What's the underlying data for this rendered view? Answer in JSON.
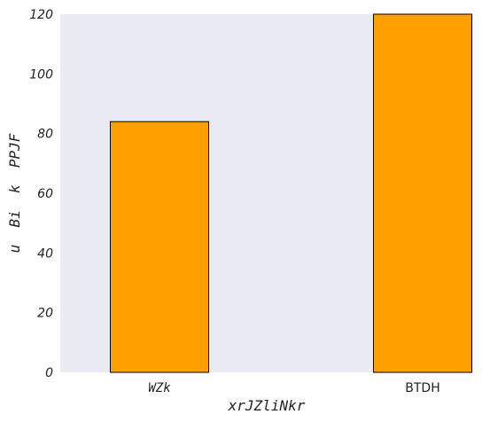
{
  "chart_data": {
    "type": "bar",
    "title": "",
    "xlabel": "xrJZliNkr",
    "ylabel": "u  Bi  k  PPJF",
    "categories": [
      "WZk",
      "BTDH"
    ],
    "series": [
      {
        "values": [
          84,
          120
        ]
      }
    ],
    "ylim": [
      0,
      120
    ],
    "yticks": [
      0,
      20,
      40,
      60,
      80,
      100,
      120
    ],
    "grid": false,
    "legend": "none",
    "colors": {
      "bar": "#ffa000",
      "bar_edge": "#000000",
      "plot_background": "#e9eaf2"
    }
  }
}
